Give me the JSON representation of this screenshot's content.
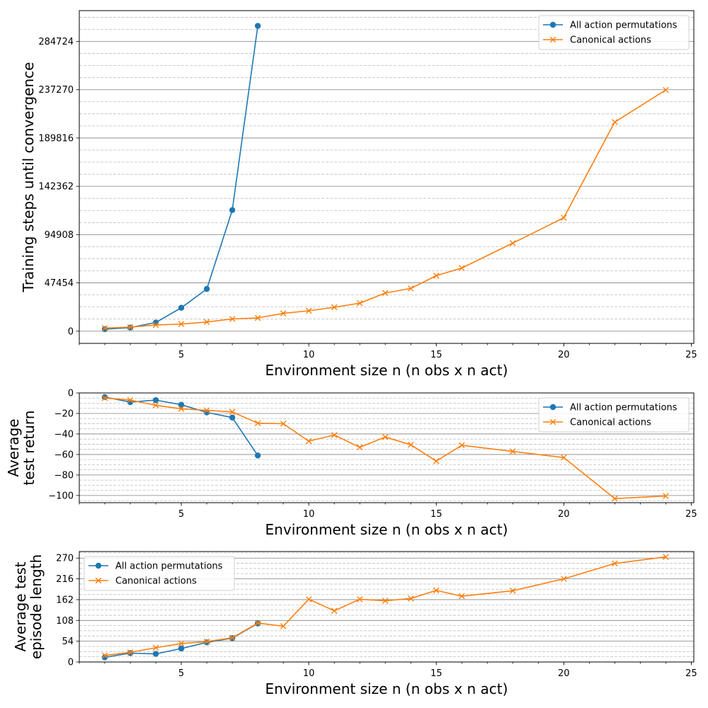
{
  "colors": {
    "all": "#1f77b4",
    "canonical": "#ff7f0e",
    "major_grid": "#808080",
    "minor_grid": "#bfbfbf"
  },
  "chart_data": [
    {
      "type": "line",
      "xlabel": "Environment size n (n obs x n act)",
      "ylabel": [
        "Training steps until convergence"
      ],
      "xlim": [
        1,
        25.1
      ],
      "ylim": [
        -12000,
        315000
      ],
      "xticks": [
        5,
        10,
        15,
        20,
        25
      ],
      "yticks": [
        0,
        47454,
        94908,
        142362,
        189816,
        237270,
        284724
      ],
      "minor_yticks": [
        11863,
        23727,
        35590,
        59317,
        71181,
        83044,
        106771,
        118635,
        130498,
        154225,
        166089,
        177952,
        201679,
        213543,
        225406,
        249133,
        260997,
        272860,
        296587,
        308451
      ],
      "legend_position": "top-right",
      "series": [
        {
          "name": "All action permutations",
          "marker": "circle",
          "color": "#1f77b4",
          "x": [
            2,
            3,
            4,
            5,
            6,
            7,
            8
          ],
          "y": [
            2000,
            3500,
            8500,
            23000,
            41500,
            119000,
            300000
          ]
        },
        {
          "name": "Canonical actions",
          "marker": "x",
          "color": "#ff7f0e",
          "x": [
            2,
            3,
            4,
            5,
            6,
            7,
            8,
            9,
            10,
            11,
            12,
            13,
            14,
            15,
            16,
            18,
            20,
            22,
            24
          ],
          "y": [
            3000,
            4000,
            6000,
            7000,
            9000,
            12000,
            13000,
            17500,
            20000,
            23500,
            27500,
            37500,
            42000,
            54500,
            62000,
            86500,
            111500,
            205500,
            237000
          ]
        }
      ]
    },
    {
      "type": "line",
      "xlabel": "Environment size n (n obs x n act)",
      "ylabel": [
        "Average",
        "test return"
      ],
      "xlim": [
        1,
        25.1
      ],
      "ylim": [
        -107,
        0
      ],
      "xticks": [
        5,
        10,
        15,
        20,
        25
      ],
      "yticks": [
        0,
        -20,
        -40,
        -60,
        -80,
        -100
      ],
      "minor_yticks": [
        -5,
        -10,
        -15,
        -25,
        -30,
        -35,
        -45,
        -50,
        -55,
        -65,
        -70,
        -75,
        -85,
        -90,
        -95,
        -105
      ],
      "legend_position": "top-right",
      "series": [
        {
          "name": "All action permutations",
          "marker": "circle",
          "color": "#1f77b4",
          "x": [
            2,
            3,
            4,
            5,
            6,
            7,
            8
          ],
          "y": [
            -4,
            -9,
            -7,
            -11.5,
            -19,
            -24,
            -61
          ]
        },
        {
          "name": "Canonical actions",
          "marker": "x",
          "color": "#ff7f0e",
          "x": [
            2,
            3,
            4,
            5,
            6,
            7,
            8,
            9,
            10,
            11,
            12,
            13,
            14,
            15,
            16,
            18,
            20,
            22,
            24
          ],
          "y": [
            -5,
            -7,
            -12,
            -15.5,
            -17,
            -18.5,
            -29.5,
            -30,
            -47,
            -41,
            -53,
            -43,
            -50.5,
            -66.5,
            -51,
            -57,
            -63,
            -103,
            -100.5
          ]
        }
      ]
    },
    {
      "type": "line",
      "xlabel": "Environment size n (n obs x n act)",
      "ylabel": [
        "Average test",
        "episode length"
      ],
      "xlim": [
        1,
        25.1
      ],
      "ylim": [
        0,
        287
      ],
      "xticks": [
        5,
        10,
        15,
        20,
        25
      ],
      "yticks": [
        0,
        54,
        108,
        162,
        216,
        270
      ],
      "minor_yticks": [
        13.5,
        27,
        40.5,
        67.5,
        81,
        94.5,
        121.5,
        135,
        148.5,
        175.5,
        189,
        202.5,
        229.5,
        243,
        256.5,
        283.5
      ],
      "legend_position": "top-left",
      "series": [
        {
          "name": "All action permutations",
          "marker": "circle",
          "color": "#1f77b4",
          "x": [
            2,
            3,
            4,
            5,
            6,
            7,
            8
          ],
          "y": [
            12,
            23,
            21,
            35,
            51,
            62,
            100
          ]
        },
        {
          "name": "Canonical actions",
          "marker": "x",
          "color": "#ff7f0e",
          "x": [
            2,
            3,
            4,
            5,
            6,
            7,
            8,
            9,
            10,
            11,
            12,
            13,
            14,
            15,
            16,
            18,
            20,
            22,
            24
          ],
          "y": [
            17,
            25,
            37,
            48,
            53,
            63,
            101,
            93,
            163,
            133,
            163,
            159,
            165,
            186,
            171,
            185,
            216,
            256,
            273
          ]
        }
      ]
    }
  ]
}
